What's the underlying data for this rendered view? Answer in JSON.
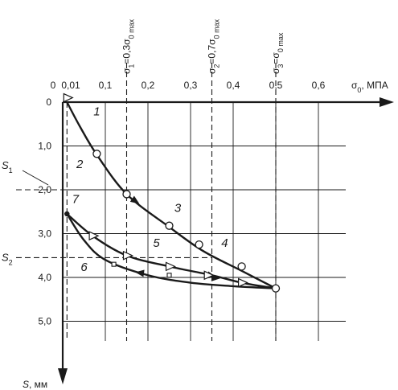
{
  "chart_data": {
    "type": "line",
    "x_axis": {
      "label": "σ0, МПА",
      "ticks": [
        "0",
        "0,01",
        "0,1",
        "0,2",
        "0,3",
        "0,4",
        "0,5",
        "0,6"
      ],
      "tick_values": [
        0,
        0.01,
        0.1,
        0.2,
        0.3,
        0.4,
        0.5,
        0.6
      ],
      "range": [
        0,
        0.6
      ],
      "position": "top"
    },
    "y_axis": {
      "label": "S, мм",
      "ticks": [
        "0",
        "1,0",
        "2,0",
        "3,0",
        "4,0",
        "5,0"
      ],
      "tick_values": [
        0,
        1,
        2,
        3,
        4,
        5
      ],
      "range": [
        0,
        5.8
      ],
      "inverted": true
    },
    "grid": true,
    "stress_levels": [
      {
        "label": "σ1=0,3σ0 max",
        "x": 0.15
      },
      {
        "label": "σ2=0,7σ0 max",
        "x": 0.35
      },
      {
        "label": "σ3=σ0 max",
        "x": 0.5
      }
    ],
    "settlement_marks": [
      {
        "label": "S1",
        "y": 2.0
      },
      {
        "label": "S2",
        "y": 3.55
      }
    ],
    "curves": [
      {
        "name": "",
        "role": "loading",
        "points": [
          [
            0.01,
            0
          ],
          [
            0.04,
            0.55
          ],
          [
            0.08,
            1.2
          ],
          [
            0.15,
            2.1
          ],
          [
            0.25,
            2.85
          ],
          [
            0.33,
            3.4
          ],
          [
            0.42,
            3.85
          ],
          [
            0.5,
            4.25
          ]
        ]
      },
      {
        "name": "",
        "role": "unloading-upper",
        "points": [
          [
            0.01,
            2.55
          ],
          [
            0.07,
            3.05
          ],
          [
            0.15,
            3.5
          ],
          [
            0.25,
            3.75
          ],
          [
            0.35,
            3.95
          ],
          [
            0.42,
            4.12
          ],
          [
            0.5,
            4.25
          ]
        ]
      },
      {
        "name": "",
        "role": "unloading-lower",
        "points": [
          [
            0.01,
            2.55
          ],
          [
            0.05,
            3.15
          ],
          [
            0.1,
            3.6
          ],
          [
            0.2,
            3.95
          ],
          [
            0.3,
            4.12
          ],
          [
            0.4,
            4.2
          ],
          [
            0.5,
            4.25
          ]
        ]
      }
    ],
    "markers": {
      "circles": [
        [
          0.08,
          1.18
        ],
        [
          0.15,
          2.1
        ],
        [
          0.25,
          2.82
        ],
        [
          0.32,
          3.25
        ],
        [
          0.42,
          3.75
        ],
        [
          0.5,
          4.25
        ]
      ],
      "triangles": [
        [
          0.01,
          -0.1
        ],
        [
          0.07,
          3.05
        ],
        [
          0.15,
          3.5
        ],
        [
          0.25,
          3.75
        ],
        [
          0.34,
          3.95
        ],
        [
          0.42,
          4.12
        ]
      ],
      "squares": [
        [
          0.12,
          3.7
        ],
        [
          0.25,
          3.95
        ]
      ],
      "dots": [
        [
          0.01,
          2.55
        ]
      ]
    },
    "annotations": [
      {
        "text": "1",
        "x": 0.08,
        "y": 0.3
      },
      {
        "text": "2",
        "x": 0.04,
        "y": 1.5
      },
      {
        "text": "3",
        "x": 0.27,
        "y": 2.5
      },
      {
        "text": "4",
        "x": 0.38,
        "y": 3.3
      },
      {
        "text": "5",
        "x": 0.22,
        "y": 3.3
      },
      {
        "text": "6",
        "x": 0.05,
        "y": 3.85
      },
      {
        "text": "7",
        "x": 0.03,
        "y": 2.3
      }
    ]
  }
}
